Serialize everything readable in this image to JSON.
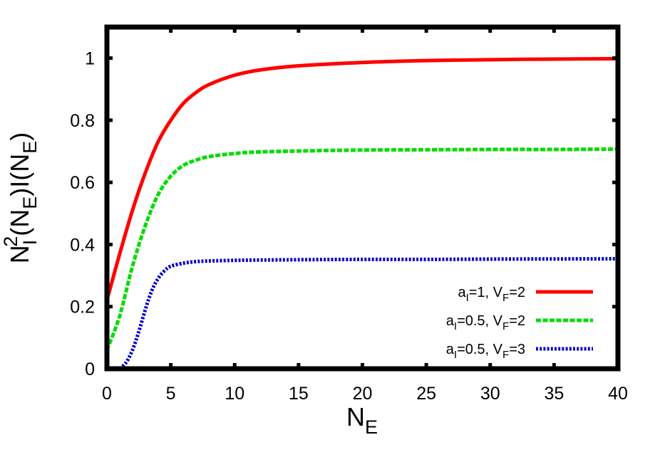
{
  "chart_data": {
    "type": "line",
    "xlabel": {
      "main": "N",
      "sub": "E"
    },
    "ylabel": {
      "parts": [
        {
          "t": "N",
          "k": "n"
        },
        {
          "t": "I",
          "k": "sub"
        },
        {
          "t": "2",
          "k": "sup"
        },
        {
          "t": "(N",
          "k": "n"
        },
        {
          "t": "E",
          "k": "sub"
        },
        {
          "t": ")I(N",
          "k": "n"
        },
        {
          "t": "E",
          "k": "sub"
        },
        {
          "t": ")",
          "k": "n"
        }
      ]
    },
    "xlim": [
      0,
      40
    ],
    "ylim": [
      0,
      1.1
    ],
    "xticks": [
      0,
      5,
      10,
      15,
      20,
      25,
      30,
      35,
      40
    ],
    "yticks": [
      0,
      0.2,
      0.4,
      0.6,
      0.8,
      1
    ],
    "xtick_labels": [
      "0",
      "5",
      "10",
      "15",
      "20",
      "25",
      "30",
      "35",
      "40"
    ],
    "ytick_labels": [
      "0",
      "0.2",
      "0.4",
      "0.6",
      "0.8",
      "1"
    ],
    "grid": false,
    "legend_position": "bottom-right",
    "series": [
      {
        "name": "a_I=1, V_F=2",
        "legend": {
          "a": "a",
          "asub": "I",
          "aval": "=1, ",
          "v": "V",
          "vsub": "F",
          "vval": "=2"
        },
        "color": "#ff0000",
        "dash": "solid",
        "x": [
          0,
          1,
          2,
          3,
          4,
          5,
          6,
          7,
          8,
          10,
          12,
          15,
          20,
          25,
          30,
          35,
          40
        ],
        "y": [
          0.22,
          0.37,
          0.51,
          0.63,
          0.73,
          0.8,
          0.855,
          0.89,
          0.915,
          0.945,
          0.962,
          0.975,
          0.986,
          0.992,
          0.995,
          0.997,
          0.998
        ]
      },
      {
        "name": "a_I=0.5, V_F=2",
        "legend": {
          "a": "a",
          "asub": "I",
          "aval": "=0.5, ",
          "v": "V",
          "vsub": "F",
          "vval": "=2"
        },
        "color": "#00dd00",
        "dash": "dashed",
        "x": [
          0,
          1,
          2,
          3,
          4,
          5,
          6,
          7,
          8,
          10,
          12,
          15,
          20,
          25,
          30,
          35,
          40
        ],
        "y": [
          0.06,
          0.17,
          0.33,
          0.46,
          0.56,
          0.62,
          0.655,
          0.672,
          0.683,
          0.693,
          0.698,
          0.701,
          0.704,
          0.705,
          0.706,
          0.706,
          0.707
        ]
      },
      {
        "name": "a_I=0.5, V_F=3",
        "legend": {
          "a": "a",
          "asub": "I",
          "aval": "=0.5, ",
          "v": "V",
          "vsub": "F",
          "vval": "=3"
        },
        "color": "#0000cc",
        "dash": "dotted",
        "x": [
          1,
          1.5,
          2,
          2.5,
          3,
          3.5,
          4,
          4.5,
          5,
          6,
          7,
          8,
          10,
          12,
          15,
          20,
          25,
          30,
          40
        ],
        "y": [
          0.0,
          0.02,
          0.06,
          0.12,
          0.19,
          0.25,
          0.29,
          0.315,
          0.33,
          0.34,
          0.345,
          0.347,
          0.349,
          0.35,
          0.351,
          0.352,
          0.352,
          0.353,
          0.354
        ]
      }
    ]
  }
}
